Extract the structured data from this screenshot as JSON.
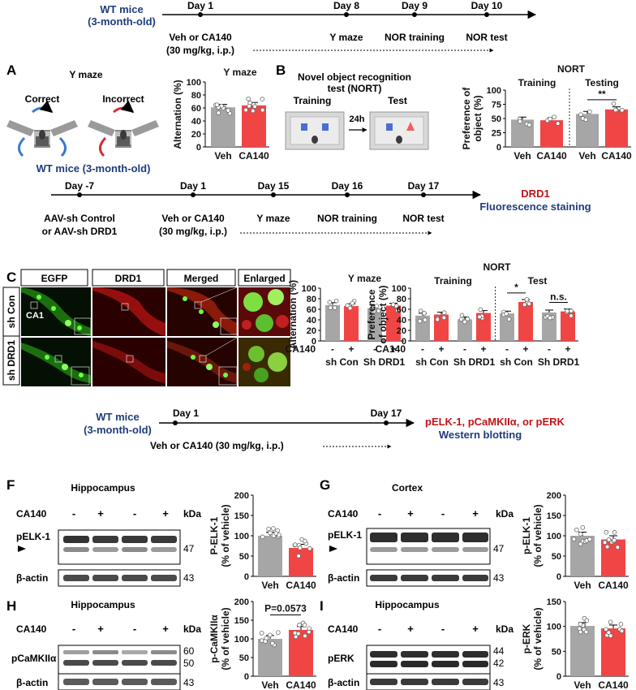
{
  "timeline1": {
    "subject_line1": "WT mice",
    "subject_line2": "(3-month-old)",
    "days": [
      "Day 1",
      "Day 8",
      "Day 9",
      "Day 10"
    ],
    "events": [
      "Veh or CA140",
      "Y maze",
      "NOR training",
      "NOR test"
    ],
    "dose": "(30 mg/kg, i.p.)"
  },
  "panelA": {
    "letter": "A",
    "title": "Y maze",
    "correct": "Correct",
    "incorrect": "Incorrect"
  },
  "panelB": {
    "letter": "B",
    "title_line1": "Novel object recognition",
    "title_line2": "test (NORT)",
    "training": "Training",
    "test": "Test",
    "interval": "24h"
  },
  "timeline2": {
    "subject": "WT mice (3-month-old)",
    "days": [
      "Day -7",
      "Day 1",
      "Day 15",
      "Day 16",
      "Day 17"
    ],
    "aav_line1": "AAV-sh Control",
    "aav_line2": "or AAV-sh DRD1",
    "veh_line1": "Veh or CA140",
    "veh_line2": "(30 mg/kg, i.p.)",
    "events": [
      "Y maze",
      "NOR training",
      "NOR test"
    ],
    "outcome_line1": "DRD1",
    "outcome_line2": "Fluorescence staining"
  },
  "panelC": {
    "letter": "C",
    "columns": [
      "EGFP",
      "DRD1",
      "Merged",
      "Enlarged"
    ],
    "rows": [
      "sh Con",
      "sh DRD1"
    ],
    "region": "CA1"
  },
  "timeline3": {
    "subject_line1": "WT mice",
    "subject_line2": "(3-month-old)",
    "days": [
      "Day 1",
      "Day 17"
    ],
    "event": "Veh or CA140 (30 mg/kg, i.p.)",
    "outcome_line1": "pELK-1, pCaMKIIα, or pERK",
    "outcome_line2": "Western blotting"
  },
  "blots": [
    {
      "letter": "F",
      "region": "Hippocampus",
      "treat_label": "CA140",
      "signs": [
        "-",
        "+",
        "-",
        "+"
      ],
      "kda": "kDa",
      "bands": [
        "pELK-1",
        "β-actin"
      ],
      "markers": [
        "47",
        "43"
      ]
    },
    {
      "letter": "G",
      "region": "Cortex",
      "treat_label": "CA140",
      "signs": [
        "-",
        "+",
        "-",
        "+"
      ],
      "kda": "kDa",
      "bands": [
        "pELK-1",
        "β-actin"
      ],
      "markers": [
        "47",
        "43"
      ]
    },
    {
      "letter": "H",
      "region": "Hippocampus",
      "treat_label": "CA140",
      "signs": [
        "-",
        "+",
        "-",
        "+"
      ],
      "kda": "kDa",
      "bands": [
        "pCaMKIIα",
        "β-actin"
      ],
      "markers": [
        "60",
        "50",
        "43"
      ]
    },
    {
      "letter": "I",
      "region": "Hippocampus",
      "treat_label": "CA140",
      "signs": [
        "-",
        "+",
        "-",
        "+"
      ],
      "kda": "kDa",
      "bands": [
        "pERK",
        "β-actin"
      ],
      "markers": [
        "44",
        "42",
        "43"
      ]
    }
  ],
  "colors": {
    "veh": "#a6a6a6",
    "drug": "#f04545",
    "navy": "#1f3c7a",
    "red_text": "#c0141c"
  },
  "chart_data": [
    {
      "id": "A_ymaze",
      "type": "bar",
      "title": "Y maze",
      "categories": [
        "Veh",
        "CA140"
      ],
      "values": [
        61,
        64
      ],
      "ylabel": "Alternation (%)",
      "ylim": [
        0,
        100
      ],
      "yticks": [
        0,
        20,
        40,
        60,
        80,
        100
      ]
    },
    {
      "id": "B_nort",
      "type": "bar",
      "title": "NORT",
      "groups": [
        "Training",
        "Testing"
      ],
      "categories": [
        "Veh",
        "CA140",
        "Veh",
        "CA140"
      ],
      "values": [
        48,
        47,
        58,
        66
      ],
      "ylabel_line1": "Preference of",
      "ylabel_line2": "object (%)",
      "ylim": [
        0,
        100
      ],
      "yticks": [
        0,
        25,
        50,
        75,
        100
      ],
      "significance": [
        "**"
      ]
    },
    {
      "id": "D_ymaze",
      "type": "bar",
      "title": "Y maze",
      "categories": [
        "sh Con -",
        "sh Con +",
        "Sh DRD1 -",
        "Sh DRD1 +"
      ],
      "values": [
        68,
        66,
        62,
        67
      ],
      "treatment_label": "CA140",
      "signs": [
        "-",
        "+",
        "-",
        "+"
      ],
      "group_labels": [
        "sh Con",
        "Sh DRD1"
      ],
      "ylabel": "Alternation (%)",
      "ylim": [
        0,
        100
      ],
      "yticks": [
        0,
        20,
        40,
        60,
        80,
        100
      ]
    },
    {
      "id": "E_nort",
      "type": "bar",
      "title": "NORT",
      "groups": [
        "Training",
        "Test"
      ],
      "categories": [
        "sh Con -",
        "sh Con +",
        "Sh DRD1 -",
        "Sh DRD1 +",
        "sh Con -",
        "sh Con +",
        "Sh DRD1 -",
        "Sh DRD1 +"
      ],
      "values": [
        48,
        50,
        41,
        53,
        52,
        74,
        54,
        56
      ],
      "treatment_label": "CA140",
      "signs": [
        "-",
        "+",
        "-",
        "+",
        "-",
        "+",
        "-",
        "+"
      ],
      "group_labels": [
        "sh Con",
        "Sh DRD1",
        "sh Con",
        "Sh DRD1"
      ],
      "ylabel_line1": "Preference",
      "ylabel_line2": "of object (%)",
      "ylim": [
        0,
        100
      ],
      "yticks": [
        0,
        20,
        40,
        60,
        80,
        100
      ],
      "significance": [
        "*",
        "n.s."
      ]
    },
    {
      "id": "F_pelk1",
      "type": "bar",
      "categories": [
        "Veh",
        "CA140"
      ],
      "values": [
        100,
        70
      ],
      "ylabel": "P-ELK-1",
      "ylabel_line2": "(% of vehicle)",
      "ylim": [
        0,
        200
      ],
      "yticks": [
        0,
        50,
        100,
        150,
        200
      ]
    },
    {
      "id": "G_pelk1",
      "type": "bar",
      "categories": [
        "Veh",
        "CA140"
      ],
      "values": [
        100,
        91
      ],
      "ylabel": "p-ELK-1",
      "ylabel_line2": "(% of vehicle)",
      "ylim": [
        0,
        200
      ],
      "yticks": [
        0,
        50,
        100,
        150,
        200
      ]
    },
    {
      "id": "H_pcamkii",
      "type": "bar",
      "categories": [
        "Veh",
        "CA140"
      ],
      "values": [
        100,
        124
      ],
      "ylabel": "p-CaMKIIα",
      "ylabel_line2": "(% of vehicle)",
      "ylim": [
        0,
        200
      ],
      "yticks": [
        0,
        50,
        100,
        150,
        200
      ],
      "annotation": "P=0.0573"
    },
    {
      "id": "I_perk",
      "type": "bar",
      "categories": [
        "Veh",
        "CA140"
      ],
      "values": [
        101,
        96
      ],
      "ylabel": "p-ERK",
      "ylabel_line2": "(% of vehicle)",
      "ylim": [
        0,
        150
      ],
      "yticks": [
        0,
        50,
        100,
        150
      ]
    }
  ]
}
